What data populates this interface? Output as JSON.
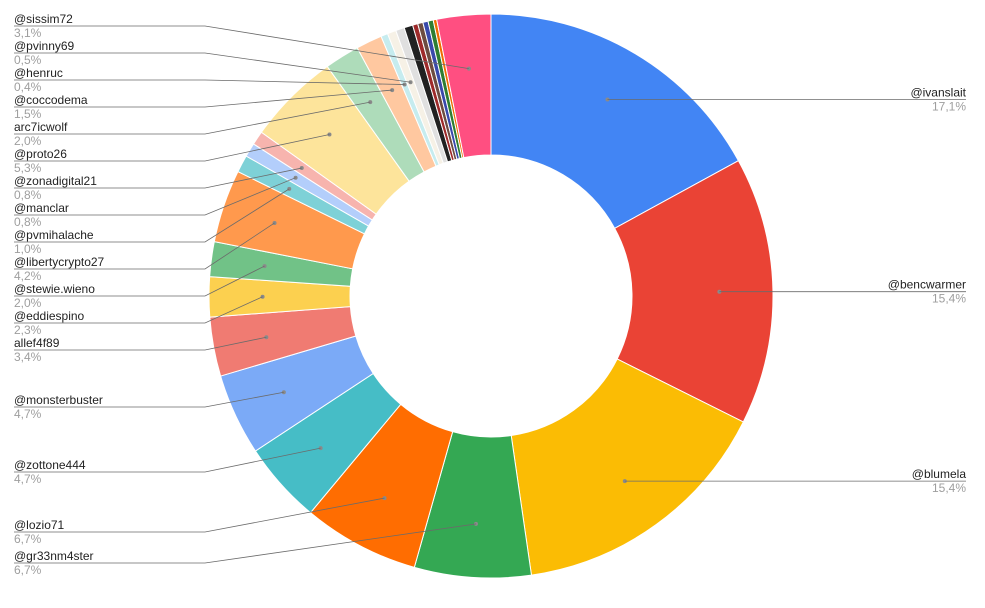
{
  "chart_data": {
    "type": "pie",
    "variant": "donut",
    "title": "",
    "decimal_separator": ",",
    "slices": [
      {
        "label": "@ivanslait",
        "value": 17.1,
        "value_label": "17,1%",
        "color": "#4285f4"
      },
      {
        "label": "@bencwarmer",
        "value": 15.4,
        "value_label": "15,4%",
        "color": "#ea4335"
      },
      {
        "label": "@blumela",
        "value": 15.4,
        "value_label": "15,4%",
        "color": "#fbbc04"
      },
      {
        "label": "@gr33nm4ster",
        "value": 6.7,
        "value_label": "6,7%",
        "color": "#34a853"
      },
      {
        "label": "@lozio71",
        "value": 6.7,
        "value_label": "6,7%",
        "color": "#ff6d01"
      },
      {
        "label": "@zottone444",
        "value": 4.7,
        "value_label": "4,7%",
        "color": "#46bdc6"
      },
      {
        "label": "@monsterbuster",
        "value": 4.7,
        "value_label": "4,7%",
        "color": "#7baaf7"
      },
      {
        "label": "allef4f89",
        "value": 3.4,
        "value_label": "3,4%",
        "color": "#f07b72"
      },
      {
        "label": "@eddiespino",
        "value": 2.3,
        "value_label": "2,3%",
        "color": "#fcd04f"
      },
      {
        "label": "@stewie.wieno",
        "value": 2.0,
        "value_label": "2,0%",
        "color": "#71c287"
      },
      {
        "label": "@libertycrypto27",
        "value": 4.2,
        "value_label": "4,2%",
        "color": "#ff994d"
      },
      {
        "label": "@pvmihalache",
        "value": 1.0,
        "value_label": "1,0%",
        "color": "#7ed1d7"
      },
      {
        "label": "@manclar",
        "value": 0.8,
        "value_label": "0,8%",
        "color": "#b3cefb"
      },
      {
        "label": "@zonadigital21",
        "value": 0.8,
        "value_label": "0,8%",
        "color": "#f7b4ae"
      },
      {
        "label": "@proto26",
        "value": 5.3,
        "value_label": "5,3%",
        "color": "#fde49b"
      },
      {
        "label": "arc7icwolf",
        "value": 2.0,
        "value_label": "2,0%",
        "color": "#aedcba"
      },
      {
        "label": "@coccodema",
        "value": 1.5,
        "value_label": "1,5%",
        "color": "#ffc8a0"
      },
      {
        "label": "@henruc",
        "value": 0.4,
        "value_label": "0,4%",
        "color": "#c6ecef"
      },
      {
        "label": "@pvinny69",
        "value": 0.5,
        "value_label": "0,5%",
        "color": "#f6f1e6"
      },
      {
        "label": "",
        "value": 0.5,
        "value_label": "",
        "color": "#e0e0e0"
      },
      {
        "label": "",
        "value": 0.5,
        "value_label": "",
        "color": "#212121"
      },
      {
        "label": "",
        "value": 0.3,
        "value_label": "",
        "color": "#9e2a2a"
      },
      {
        "label": "",
        "value": 0.3,
        "value_label": "",
        "color": "#6d4c41"
      },
      {
        "label": "",
        "value": 0.3,
        "value_label": "",
        "color": "#3949ab"
      },
      {
        "label": "",
        "value": 0.3,
        "value_label": "",
        "color": "#2e7d32"
      },
      {
        "label": "",
        "value": 0.2,
        "value_label": "",
        "color": "#ef6c00"
      },
      {
        "label": "@sissim72",
        "value": 3.1,
        "value_label": "3,1%",
        "color": "#ff4f81"
      }
    ]
  }
}
